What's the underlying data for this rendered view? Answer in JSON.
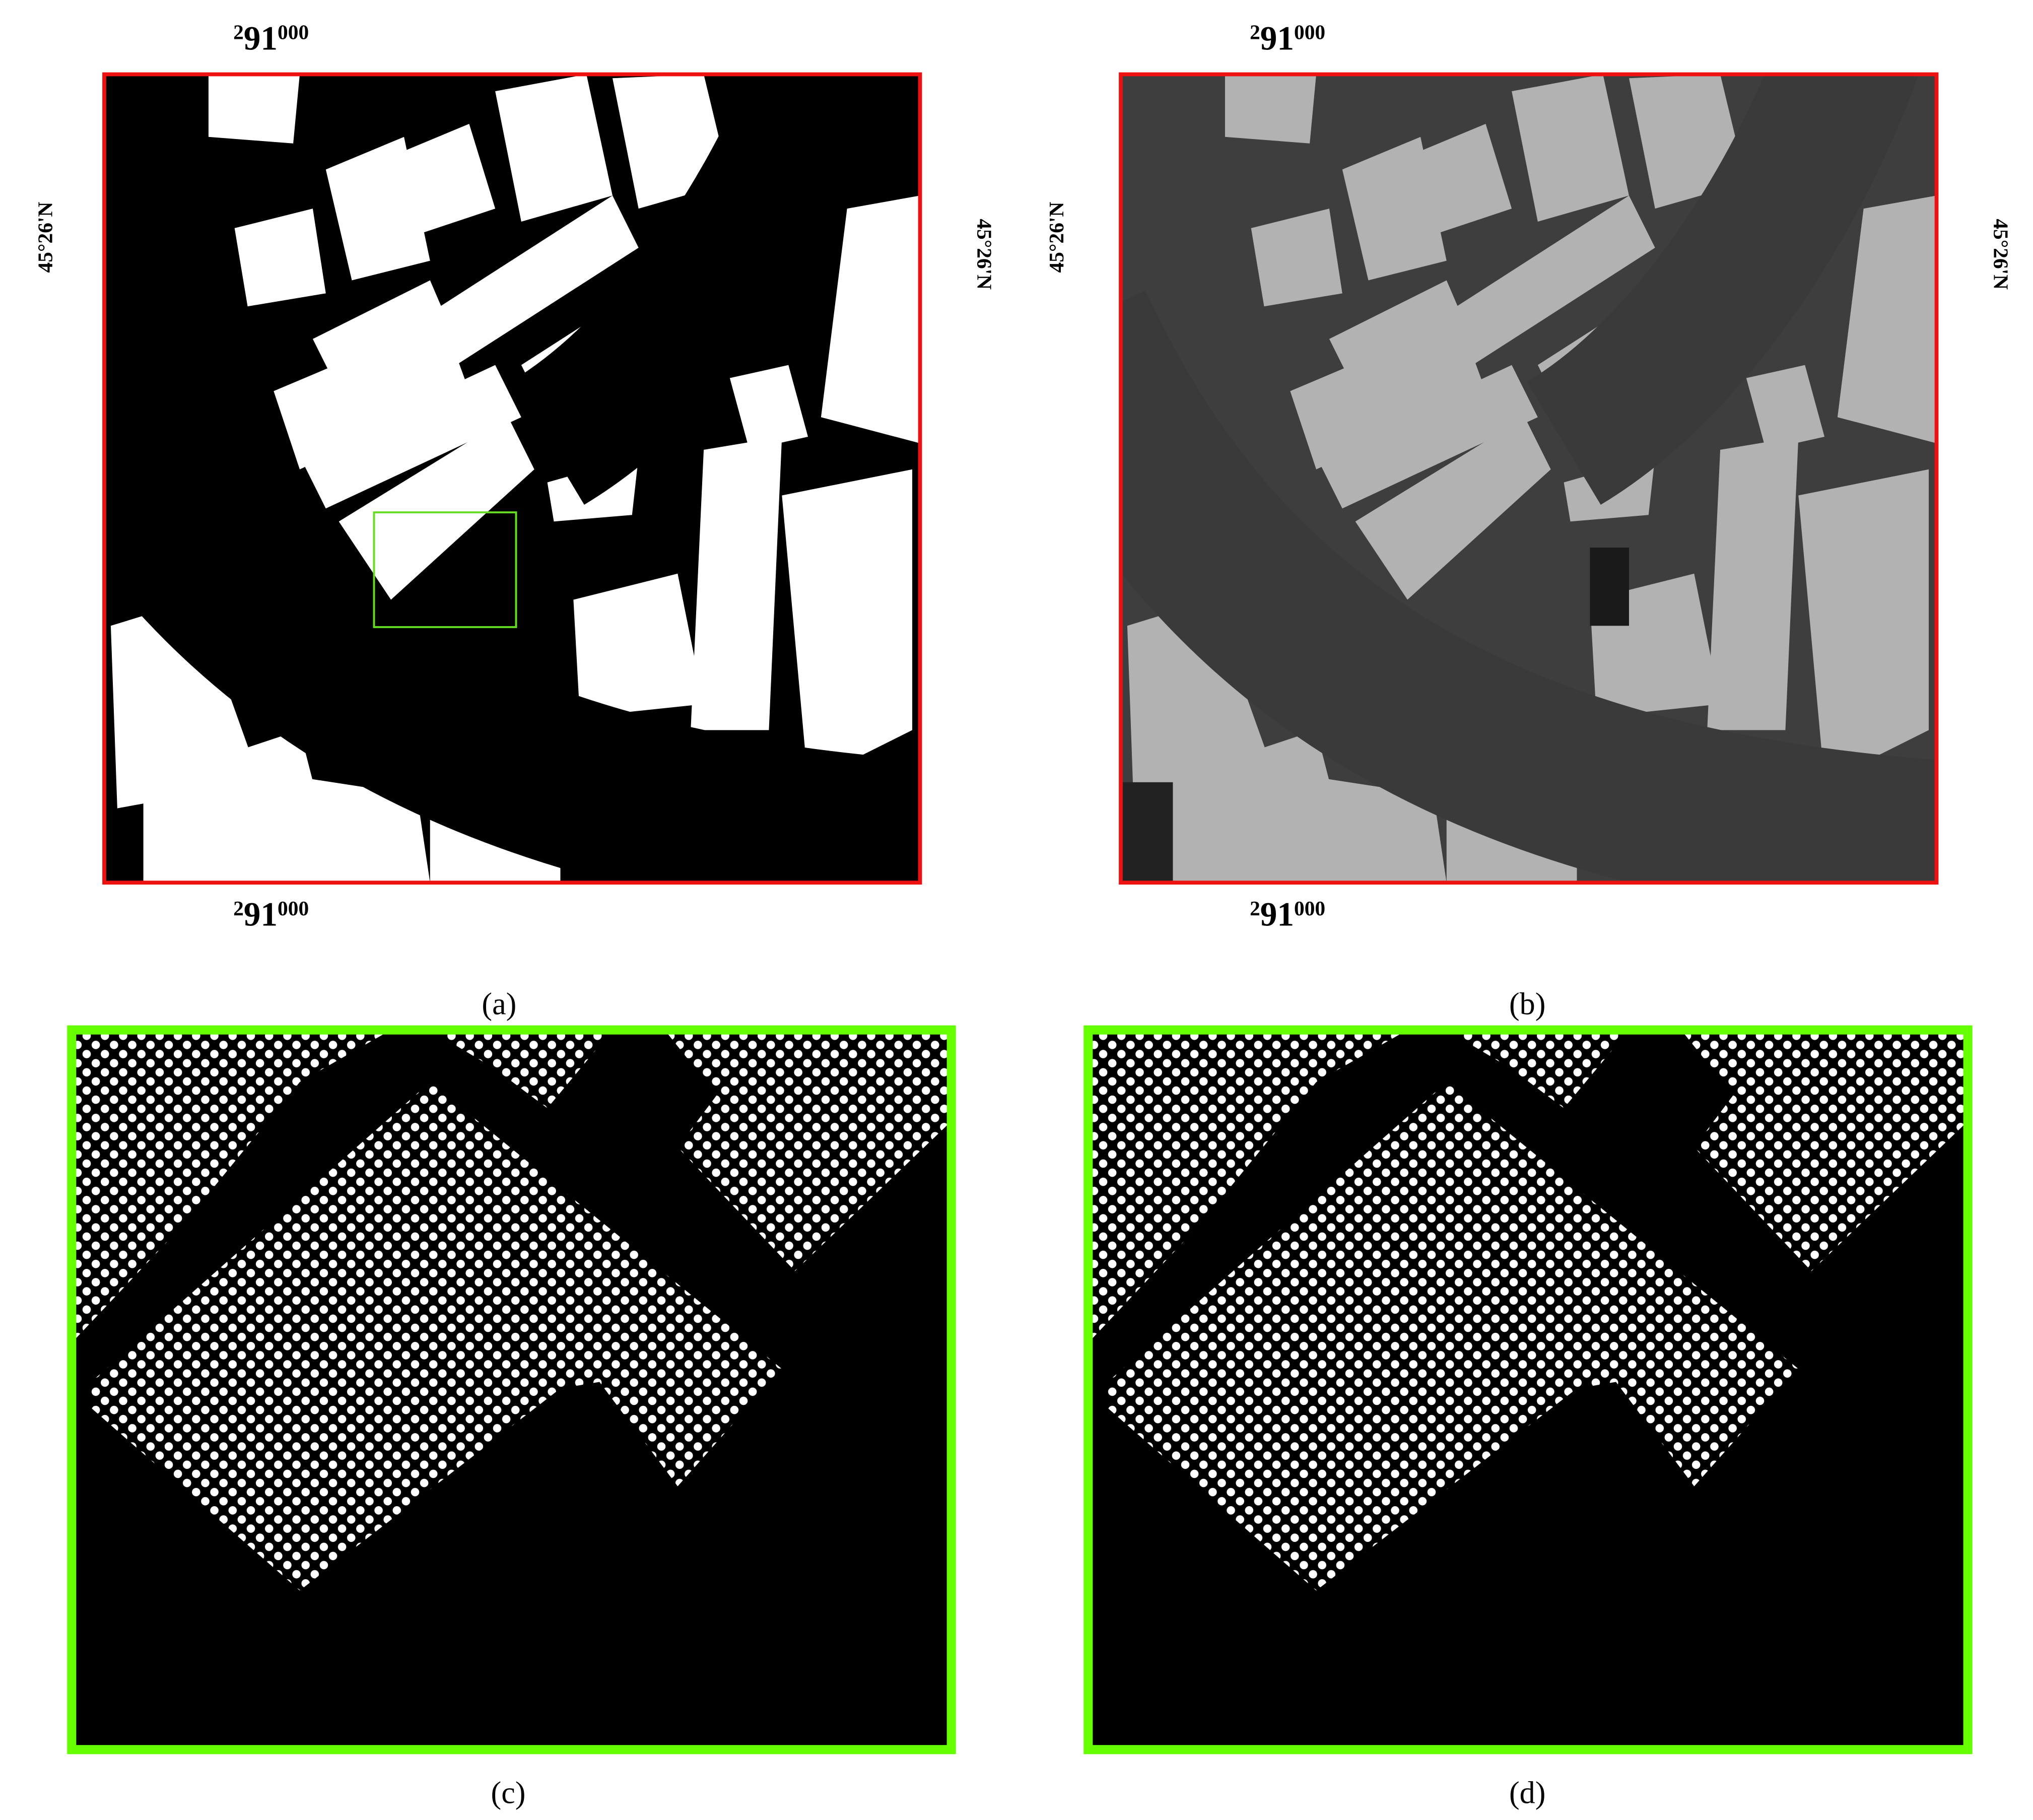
{
  "panels": [
    {
      "caption": "(a)",
      "top_label": {
        "lead": "2",
        "main": "91",
        "tail": "000"
      },
      "bottom_label": {
        "lead": "2",
        "main": "91",
        "tail": "000"
      },
      "left_label": "45°26'N",
      "right_label": "45°26'N"
    },
    {
      "caption": "(b)",
      "top_label": {
        "lead": "2",
        "main": "91",
        "tail": "000"
      },
      "bottom_label": {
        "lead": "2",
        "main": "91",
        "tail": "000"
      },
      "left_label": "45°26'N",
      "right_label": "45°26'N"
    },
    {
      "caption": "(c)"
    },
    {
      "caption": "(d)"
    }
  ]
}
